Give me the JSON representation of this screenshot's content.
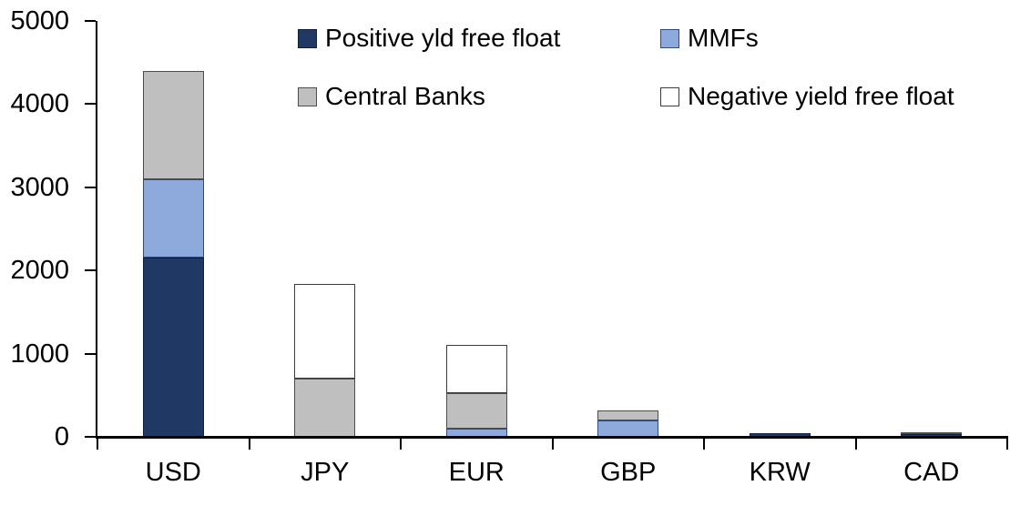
{
  "chart_data": {
    "type": "bar",
    "stacked": true,
    "categories": [
      "USD",
      "JPY",
      "EUR",
      "GBP",
      "KRW",
      "CAD"
    ],
    "series": [
      {
        "name": "Positive yld free float",
        "color": "#1F3864",
        "border_color": "#121F38",
        "values": [
          2150,
          0,
          0,
          0,
          40,
          30
        ]
      },
      {
        "name": "MMFs",
        "color": "#8EA9DC",
        "border_color": "#2E4A7D",
        "values": [
          950,
          0,
          100,
          200,
          0,
          0
        ]
      },
      {
        "name": "Central Banks",
        "color": "#BFBFBF",
        "border_color": "#4D4D4D",
        "values": [
          1300,
          700,
          425,
          120,
          0,
          30
        ]
      },
      {
        "name": "Negative yield free float",
        "color": "#FFFFFF",
        "border_color": "#3B3B3B",
        "values": [
          0,
          1140,
          580,
          0,
          0,
          0
        ]
      }
    ],
    "ylim": [
      0,
      5000
    ],
    "yticks": [
      0,
      1000,
      2000,
      3000,
      4000,
      5000
    ],
    "ytick_labels": [
      "0",
      "1000",
      "2000",
      "3000",
      "4000",
      "5000"
    ],
    "grid": false,
    "legend_position": "top",
    "legend_rows": [
      [
        "Positive yld free float",
        "MMFs"
      ],
      [
        "Central Banks",
        "Negative yield free float"
      ]
    ],
    "axis_color": "#000000",
    "background_color": "#FFFFFF",
    "text_color": "#000000"
  }
}
